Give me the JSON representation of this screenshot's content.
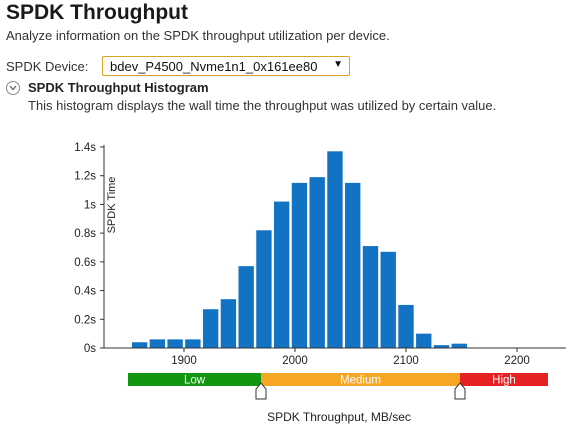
{
  "header": {
    "title": "SPDK Throughput",
    "subtitle": "Analyze information on the SPDK throughput utilization per device."
  },
  "device": {
    "label": "SPDK Device:",
    "selected": "bdev_P4500_Nvme1n1_0x161ee80"
  },
  "section": {
    "title": "SPDK Throughput Histogram",
    "description": "This histogram displays the wall time the throughput was utilized by certain value."
  },
  "colors": {
    "bar": "#1272c4",
    "low": "#129612",
    "medium": "#f5a623",
    "high": "#e52124",
    "select_border": "#e0a020"
  },
  "chart_data": {
    "type": "bar",
    "title": "",
    "xlabel": "SPDK Throughput, MB/sec",
    "ylabel": "SPDK Time",
    "x_ticks": [
      1900,
      2000,
      2100,
      2200
    ],
    "y_ticks": [
      "0s",
      "0.2s",
      "0.4s",
      "0.6s",
      "0.8s",
      "1s",
      "1.2s",
      "1.4s"
    ],
    "xlim": [
      1840,
      2250
    ],
    "ylim": [
      0,
      1.45
    ],
    "bin_width": 16,
    "bins": [
      {
        "x": 1860,
        "y": 0.04
      },
      {
        "x": 1876,
        "y": 0.06
      },
      {
        "x": 1892,
        "y": 0.06
      },
      {
        "x": 1908,
        "y": 0.06
      },
      {
        "x": 1924,
        "y": 0.27
      },
      {
        "x": 1940,
        "y": 0.34
      },
      {
        "x": 1956,
        "y": 0.57
      },
      {
        "x": 1972,
        "y": 0.82
      },
      {
        "x": 1988,
        "y": 1.02
      },
      {
        "x": 2004,
        "y": 1.15
      },
      {
        "x": 2020,
        "y": 1.19
      },
      {
        "x": 2036,
        "y": 1.37
      },
      {
        "x": 2052,
        "y": 1.15
      },
      {
        "x": 2068,
        "y": 0.71
      },
      {
        "x": 2084,
        "y": 0.67
      },
      {
        "x": 2100,
        "y": 0.3
      },
      {
        "x": 2116,
        "y": 0.1
      },
      {
        "x": 2132,
        "y": 0.02
      },
      {
        "x": 2148,
        "y": 0.03
      }
    ],
    "ranges": [
      {
        "name": "Low",
        "from": 1840,
        "to": 1970
      },
      {
        "name": "Medium",
        "from": 1970,
        "to": 2150
      },
      {
        "name": "High",
        "from": 2150,
        "to": 2230
      }
    ]
  }
}
